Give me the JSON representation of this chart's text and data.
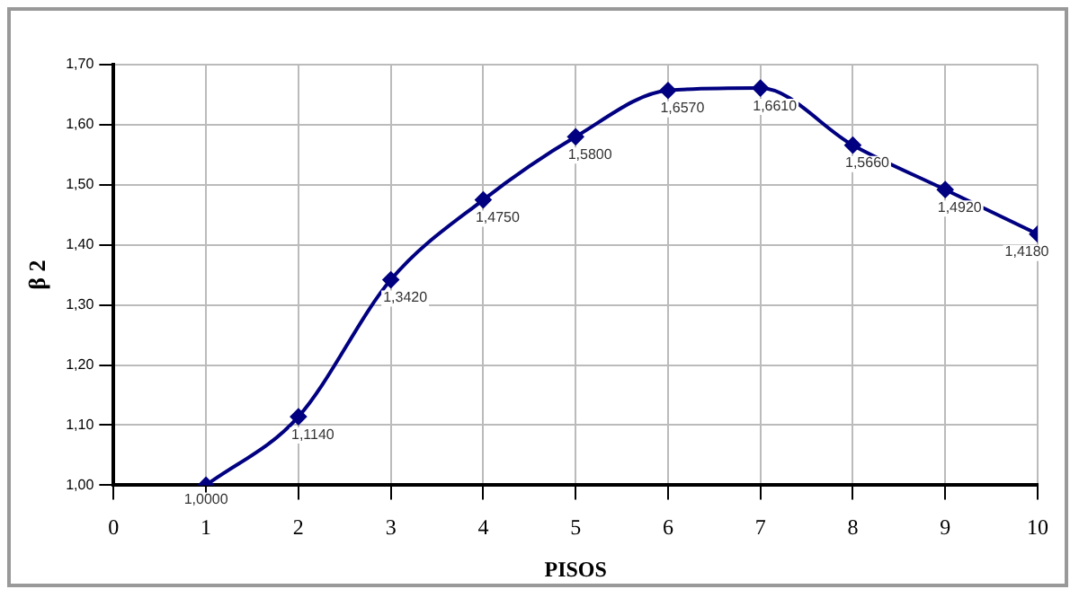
{
  "chart_data": {
    "type": "line",
    "xlabel": "PISOS",
    "ylabel": "β 2",
    "x": [
      1,
      2,
      3,
      4,
      5,
      6,
      7,
      8,
      9,
      10
    ],
    "series": [
      {
        "color": "#000080",
        "values": [
          1.0,
          1.114,
          1.342,
          1.475,
          1.58,
          1.657,
          1.661,
          1.566,
          1.492,
          1.418
        ],
        "value_labels": [
          "1,0000",
          "1,1140",
          "1,3420",
          "1,4750",
          "1,5800",
          "1,6570",
          "1,6610",
          "1,5660",
          "1,4920",
          "1,4180"
        ]
      }
    ],
    "xlim": [
      0,
      10
    ],
    "xticks": [
      0,
      1,
      2,
      3,
      4,
      5,
      6,
      7,
      8,
      9,
      10
    ],
    "ylim": [
      1.0,
      1.7
    ],
    "yticks": [
      {
        "value": 1.0,
        "label": "1,00"
      },
      {
        "value": 1.1,
        "label": "1,10"
      },
      {
        "value": 1.2,
        "label": "1,20"
      },
      {
        "value": 1.3,
        "label": "1,30"
      },
      {
        "value": 1.4,
        "label": "1,40"
      },
      {
        "value": 1.5,
        "label": "1,50"
      },
      {
        "value": 1.6,
        "label": "1,60"
      },
      {
        "value": 1.7,
        "label": "1,70"
      }
    ],
    "grid": true,
    "legend": false,
    "marker": "diamond",
    "line_style": "solid"
  }
}
